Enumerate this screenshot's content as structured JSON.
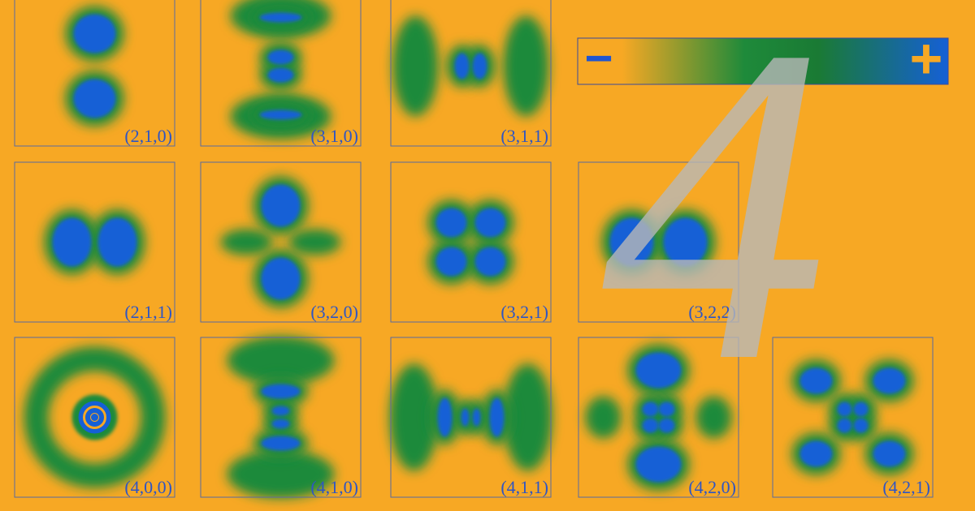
{
  "panels": [
    "(2,1,0)",
    "(3,1,0)",
    "(3,1,1)",
    "(2,1,1)",
    "(3,2,0)",
    "(3,2,1)",
    "(3,2,2)",
    "(4,0,0)",
    "(4,1,0)",
    "(4,1,1)",
    "(4,2,0)",
    "(4,2,1)"
  ],
  "colorbar": {
    "minus": "−",
    "plus": "+"
  },
  "watermark": "4"
}
